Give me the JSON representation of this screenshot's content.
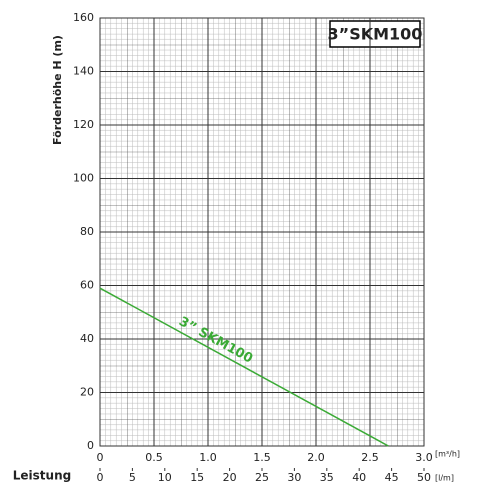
{
  "chart_data": {
    "type": "line",
    "title": "3”SKM100",
    "ylabel": "Förderhöhe   H (m)",
    "xlabel": "Leistung",
    "xunit": "[m³/h]",
    "x2unit": "[l/m]",
    "xlim": [
      0,
      3
    ],
    "xticks": [
      0,
      0.5,
      {
        "value": 1,
        "label": "1.0"
      },
      1.5,
      {
        "value": 2,
        "label": "2.0"
      },
      2.5,
      {
        "value": 3,
        "label": "3.0"
      }
    ],
    "x2lim": [
      0,
      50
    ],
    "x2ticks": [
      0,
      5,
      10,
      15,
      20,
      25,
      30,
      35,
      40,
      45,
      50
    ],
    "ylim": [
      0,
      160
    ],
    "yticks": [
      0,
      20,
      40,
      60,
      80,
      100,
      120,
      140,
      160
    ],
    "grid": true,
    "series": [
      {
        "name": "3” SKM100",
        "color": "#3aaa35",
        "x": [
          0,
          2.67
        ],
        "values": [
          59,
          0
        ]
      }
    ]
  }
}
